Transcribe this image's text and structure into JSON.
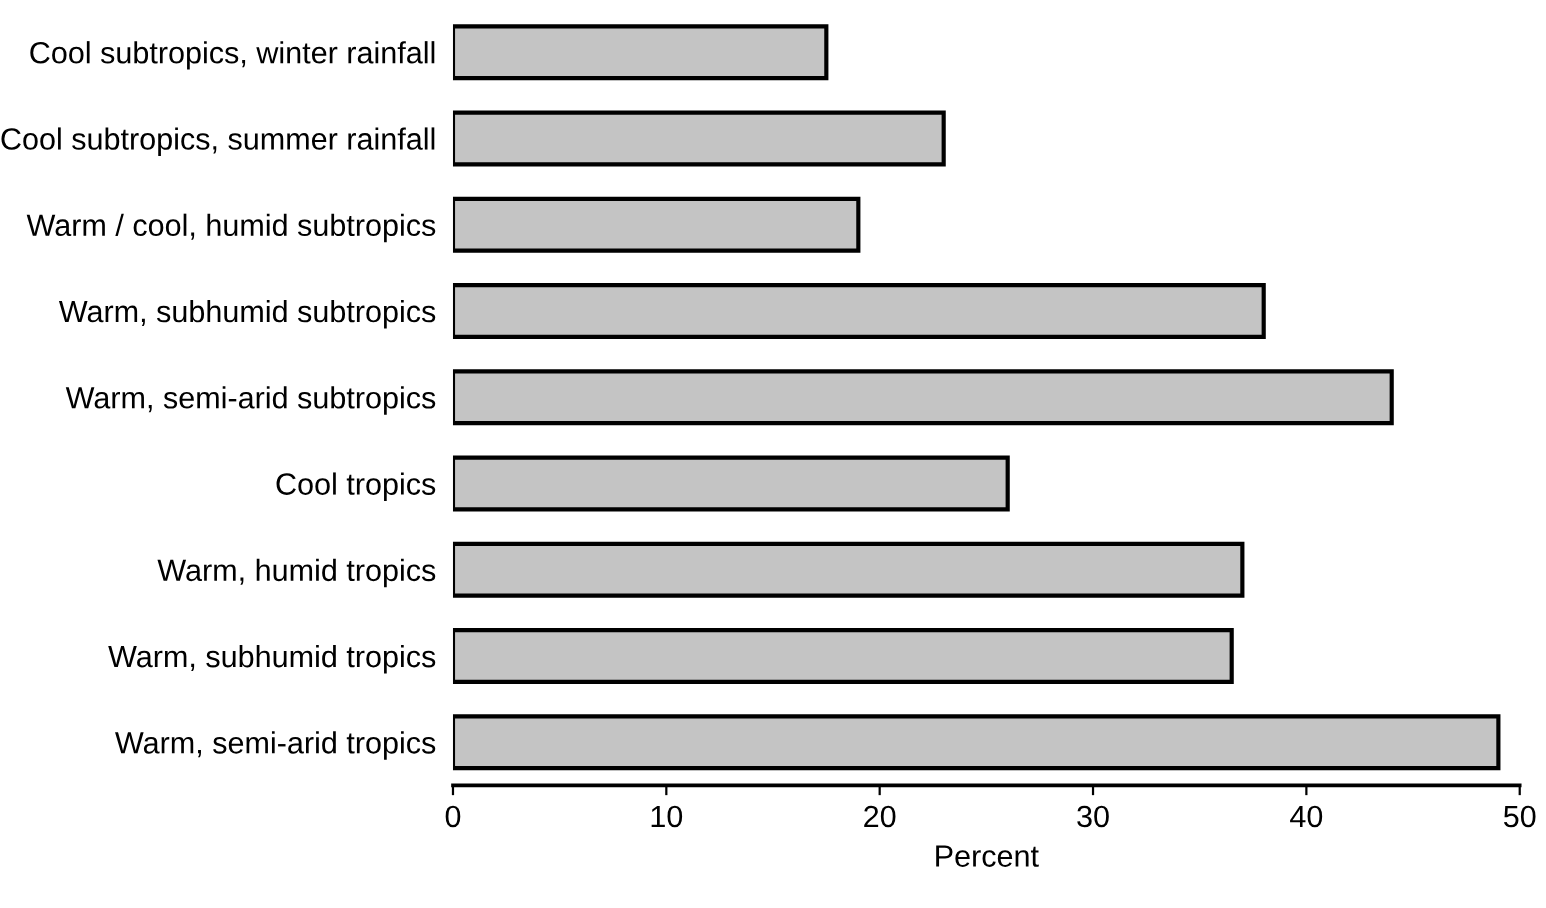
{
  "chart_data": {
    "type": "bar",
    "orientation": "horizontal",
    "xlabel": "Percent",
    "categories": [
      "Cool subtropics, winter rainfall",
      "Cool subtropics, summer rainfall",
      "Warm / cool, humid subtropics",
      "Warm, subhumid subtropics",
      "Warm, semi-arid subtropics",
      "Cool tropics",
      "Warm, humid tropics",
      "Warm, subhumid tropics",
      "Warm, semi-arid tropics"
    ],
    "values": [
      17.5,
      23,
      19,
      38,
      44,
      26,
      37,
      36.5,
      49
    ],
    "color": "#c4c4c4",
    "xlim": [
      0,
      50
    ],
    "xticks": [
      0,
      10,
      20,
      30,
      40,
      50
    ],
    "grid": false,
    "legend": false
  }
}
